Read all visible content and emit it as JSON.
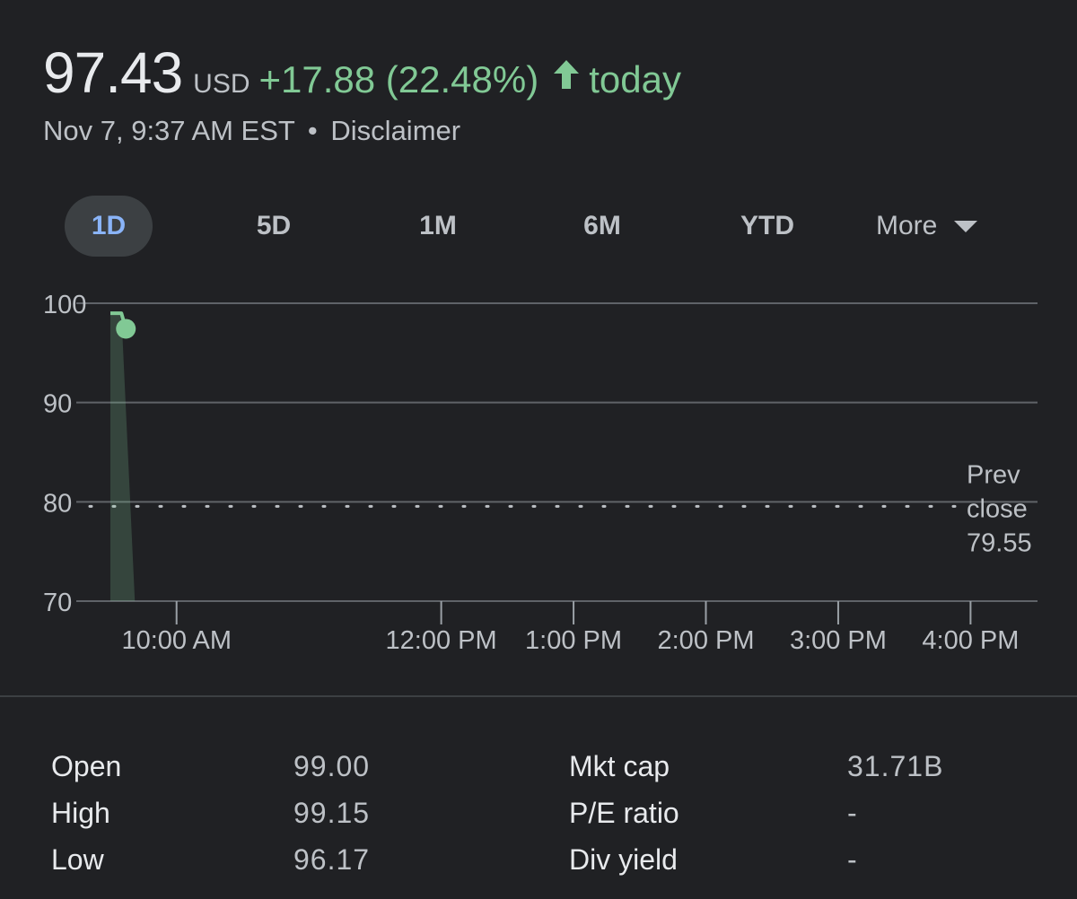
{
  "header": {
    "price": "97.43",
    "currency": "USD",
    "change": "+17.88 (22.48%)",
    "period": "today",
    "timestamp": "Nov 7, 9:37 AM EST",
    "separator": "•",
    "disclaimer": "Disclaimer"
  },
  "tabs": [
    {
      "label": "1D",
      "active": true
    },
    {
      "label": "5D",
      "active": false
    },
    {
      "label": "1M",
      "active": false
    },
    {
      "label": "6M",
      "active": false
    },
    {
      "label": "YTD",
      "active": false
    },
    {
      "label": "More",
      "active": false
    }
  ],
  "chart_data": {
    "type": "line",
    "y_ticks": [
      "100",
      "90",
      "80",
      "70"
    ],
    "ylim": [
      70,
      100
    ],
    "x_ticks": [
      "10:00 AM",
      "12:00 PM",
      "1:00 PM",
      "2:00 PM",
      "3:00 PM",
      "4:00 PM"
    ],
    "x_tick_values": [
      10.0,
      12.0,
      13.0,
      14.0,
      15.0,
      16.0
    ],
    "xlim": [
      9.5,
      16.35
    ],
    "series": [
      {
        "x": [
          9.5,
          9.583,
          9.617
        ],
        "y": [
          99.0,
          99.0,
          97.43
        ]
      }
    ],
    "prev_close": {
      "label": [
        "Prev",
        "close",
        "79.55"
      ],
      "value": 79.55
    },
    "line_color": "#81c995",
    "grid": true
  },
  "stats": {
    "left": [
      {
        "label": "Open",
        "value": "99.00"
      },
      {
        "label": "High",
        "value": "99.15"
      },
      {
        "label": "Low",
        "value": "96.17"
      }
    ],
    "right": [
      {
        "label": "Mkt cap",
        "value": "31.71B"
      },
      {
        "label": "P/E ratio",
        "value": "-"
      },
      {
        "label": "Div yield",
        "value": "-"
      }
    ]
  },
  "colors": {
    "background": "#202124",
    "accent_green": "#81c995",
    "active_tab_text": "#8ab4f8",
    "active_tab_bg": "#3c4043"
  }
}
